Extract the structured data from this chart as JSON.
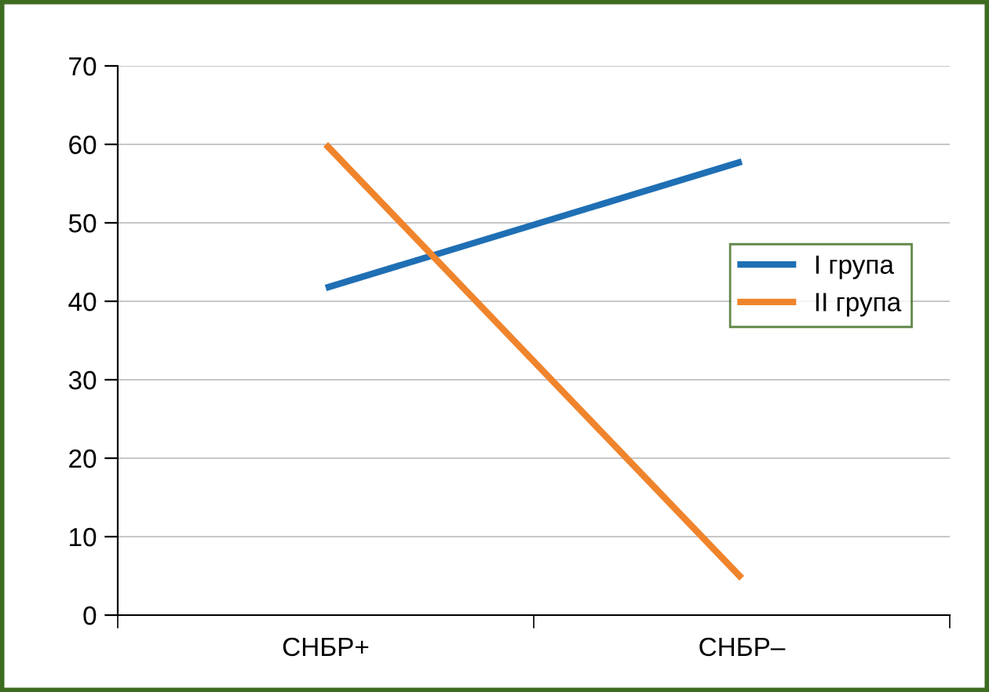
{
  "chart_data": {
    "type": "line",
    "categories": [
      "СНБР+",
      "СНБР–"
    ],
    "series": [
      {
        "name": "I група",
        "color": "#1f6fb4",
        "values": [
          41.7,
          57.8
        ]
      },
      {
        "name": "II група",
        "color": "#f0842c",
        "values": [
          60,
          4.7
        ]
      }
    ],
    "ylim": [
      0,
      70
    ],
    "yticks": [
      0,
      10,
      20,
      30,
      40,
      50,
      60,
      70
    ],
    "grid": "y",
    "legend": "right",
    "marker": "none",
    "line_style": "solid"
  }
}
